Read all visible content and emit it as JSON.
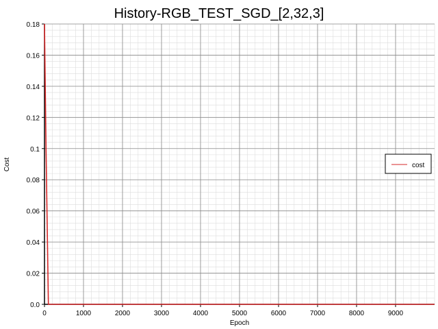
{
  "chart_data": {
    "type": "line",
    "title": "History-RGB_TEST_SGD_[2,32,3]",
    "xlabel": "Epoch",
    "ylabel": "Cost",
    "xlim": [
      0,
      10000
    ],
    "ylim": [
      0,
      0.18
    ],
    "x_ticks": [
      0,
      1000,
      2000,
      3000,
      4000,
      5000,
      6000,
      7000,
      8000,
      9000
    ],
    "x_tick_labels": [
      "0",
      "1000",
      "2000",
      "3000",
      "4000",
      "5000",
      "6000",
      "7000",
      "8000",
      "9000"
    ],
    "y_ticks": [
      0,
      0.02,
      0.04,
      0.06,
      0.08,
      0.1,
      0.12,
      0.14,
      0.16,
      0.18
    ],
    "y_tick_labels": [
      "0.0",
      "0.02",
      "0.04",
      "0.06",
      "0.08",
      "0.1",
      "0.12",
      "0.14",
      "0.16",
      "0.18"
    ],
    "grid": true,
    "legend_position": "right",
    "series": [
      {
        "name": "cost",
        "color": "#d62728",
        "x": [
          0,
          40,
          100,
          200,
          500,
          1000,
          2000,
          3000,
          4000,
          5000,
          6000,
          7000,
          8000,
          9000,
          10000
        ],
        "y": [
          0.18,
          0.1,
          0.0,
          0.0,
          0.0,
          0.0,
          0.0,
          0.0,
          0.0,
          0.0,
          0.0,
          0.0,
          0.0,
          0.0,
          0.0
        ]
      }
    ]
  }
}
